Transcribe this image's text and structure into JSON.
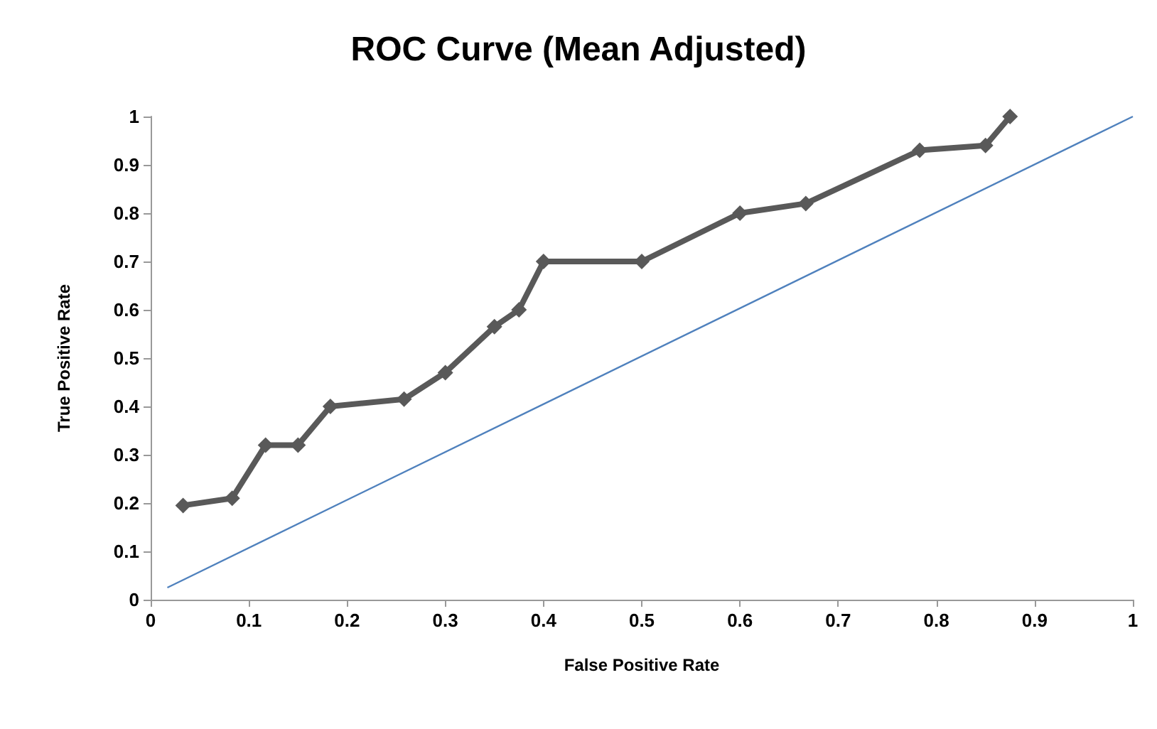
{
  "chart_data": {
    "type": "line",
    "title": "ROC Curve (Mean Adjusted)",
    "xlabel": "False Positive Rate",
    "ylabel": "True Positive Rate",
    "xlim": [
      0,
      1
    ],
    "xticks": [
      0,
      0.1,
      0.2,
      0.3,
      0.4,
      0.5,
      0.6,
      0.7,
      0.8,
      0.9,
      1
    ],
    "ylim": [
      0,
      1
    ],
    "yticks": [
      0,
      0.1,
      0.2,
      0.3,
      0.4,
      0.5,
      0.6,
      0.7,
      0.8,
      0.9,
      1
    ],
    "grid": false,
    "series": [
      {
        "color": "#595959",
        "marker": "diamond",
        "x": [
          0.033,
          0.083,
          0.117,
          0.15,
          0.183,
          0.258,
          0.3,
          0.35,
          0.375,
          0.4,
          0.5,
          0.6,
          0.667,
          0.783,
          0.85,
          0.875
        ],
        "values": [
          0.195,
          0.21,
          0.32,
          0.32,
          0.4,
          0.415,
          0.47,
          0.565,
          0.6,
          0.7,
          0.7,
          0.8,
          0.82,
          0.93,
          0.94,
          1.0
        ]
      },
      {
        "color": "#4f81bd",
        "marker": "none",
        "x": [
          0.017,
          1
        ],
        "values": [
          0.025,
          1
        ]
      }
    ]
  }
}
